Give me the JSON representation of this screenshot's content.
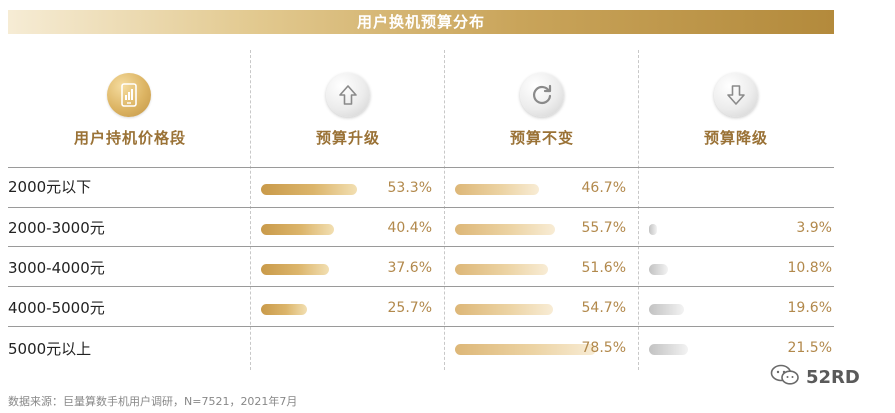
{
  "title": "用户换机预算分布",
  "columns": {
    "segment": "用户持机价格段",
    "upgrade": "预算升级",
    "unchanged": "预算不变",
    "downgrade": "预算降级"
  },
  "icons": {
    "segment": "smartphone-chart-icon",
    "upgrade": "arrow-up-icon",
    "unchanged": "refresh-icon",
    "downgrade": "arrow-down-icon"
  },
  "chart_data": {
    "type": "table",
    "title": "用户换机预算分布",
    "categories": [
      "2000元以下",
      "2000-3000元",
      "3000-4000元",
      "4000-5000元",
      "5000元以上"
    ],
    "series": [
      {
        "name": "预算升级",
        "values": [
          53.3,
          40.4,
          37.6,
          25.7,
          null
        ]
      },
      {
        "name": "预算不变",
        "values": [
          46.7,
          55.7,
          51.6,
          54.7,
          78.5
        ]
      },
      {
        "name": "预算降级",
        "values": [
          null,
          3.9,
          10.8,
          19.6,
          21.5
        ]
      }
    ],
    "labels": [
      [
        "53.3%",
        "46.7%",
        ""
      ],
      [
        "40.4%",
        "55.7%",
        "3.9%"
      ],
      [
        "37.6%",
        "51.6%",
        "10.8%"
      ],
      [
        "25.7%",
        "54.7%",
        "19.6%"
      ],
      [
        "",
        "78.5%",
        "21.5%"
      ]
    ],
    "unit": "%",
    "colors": {
      "upgrade": "#d1a656",
      "unchanged": "#e6c68a",
      "downgrade": "#d0d0d0",
      "text": "#b2894c"
    }
  },
  "footer": "数据来源：巨量算数手机用户调研，N=7521，2021年7月",
  "watermark": {
    "icon": "wechat-icon",
    "text": "52RD"
  }
}
